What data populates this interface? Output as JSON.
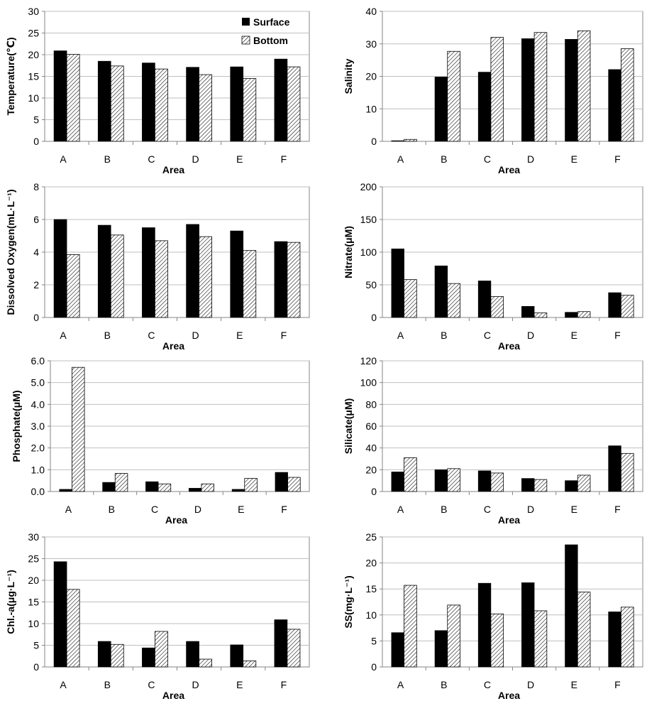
{
  "legend": {
    "surface_label": "Surface",
    "bottom_label": "Bottom"
  },
  "colors": {
    "surface": "#000000",
    "bottom_fill": "#ffffff",
    "bottom_hatch": "#000000",
    "grid": "#bfbfbf",
    "axis": "#868686"
  },
  "chart_data": [
    {
      "type": "bar",
      "title": "",
      "xlabel": "Area",
      "ylabel": "Temperature(℃)",
      "categories": [
        "A",
        "B",
        "C",
        "D",
        "E",
        "F"
      ],
      "ylim": [
        0,
        30
      ],
      "yticks": [
        "0",
        "5",
        "10",
        "15",
        "20",
        "25",
        "30"
      ],
      "grid": true,
      "legend": "top-right",
      "series": [
        {
          "name": "Surface",
          "values": [
            20.9,
            18.5,
            18.1,
            17.1,
            17.2,
            19.0
          ]
        },
        {
          "name": "Bottom",
          "values": [
            20.1,
            17.4,
            16.7,
            15.4,
            14.5,
            17.2
          ]
        }
      ]
    },
    {
      "type": "bar",
      "title": "",
      "xlabel": "Area",
      "ylabel": "Salinity",
      "categories": [
        "A",
        "B",
        "C",
        "D",
        "E",
        "F"
      ],
      "ylim": [
        0,
        40
      ],
      "yticks": [
        "0",
        "10",
        "20",
        "30",
        "40"
      ],
      "grid": true,
      "series": [
        {
          "name": "Surface",
          "values": [
            0.2,
            19.8,
            21.3,
            31.6,
            31.4,
            22.1
          ]
        },
        {
          "name": "Bottom",
          "values": [
            0.6,
            27.7,
            32.0,
            33.5,
            34.0,
            28.5
          ]
        }
      ]
    },
    {
      "type": "bar",
      "title": "",
      "xlabel": "Area",
      "ylabel": "Dissolved Oxygen(mL·L⁻¹)",
      "categories": [
        "A",
        "B",
        "C",
        "D",
        "E",
        "F"
      ],
      "ylim": [
        0,
        8
      ],
      "yticks": [
        "0",
        "2",
        "4",
        "6",
        "8"
      ],
      "grid": true,
      "series": [
        {
          "name": "Surface",
          "values": [
            6.0,
            5.65,
            5.5,
            5.7,
            5.3,
            4.65
          ]
        },
        {
          "name": "Bottom",
          "values": [
            3.85,
            5.05,
            4.7,
            4.95,
            4.1,
            4.6
          ]
        }
      ]
    },
    {
      "type": "bar",
      "title": "",
      "xlabel": "Area",
      "ylabel": "Nitrate(μM)",
      "categories": [
        "A",
        "B",
        "C",
        "D",
        "E",
        "F"
      ],
      "ylim": [
        0,
        200
      ],
      "yticks": [
        "0",
        "50",
        "100",
        "150",
        "200"
      ],
      "grid": true,
      "series": [
        {
          "name": "Surface",
          "values": [
            105,
            79,
            56,
            17,
            8,
            38
          ]
        },
        {
          "name": "Bottom",
          "values": [
            58,
            52,
            32,
            7,
            9,
            34
          ]
        }
      ]
    },
    {
      "type": "bar",
      "title": "",
      "xlabel": "Area",
      "ylabel": "Phosphate(μM)",
      "categories": [
        "A",
        "B",
        "C",
        "D",
        "E",
        "F"
      ],
      "ylim": [
        0,
        6
      ],
      "yticks": [
        "0.0",
        "1.0",
        "2.0",
        "3.0",
        "4.0",
        "5.0",
        "6.0"
      ],
      "grid": true,
      "series": [
        {
          "name": "Surface",
          "values": [
            0.1,
            0.42,
            0.45,
            0.15,
            0.1,
            0.88
          ]
        },
        {
          "name": "Bottom",
          "values": [
            5.7,
            0.83,
            0.35,
            0.35,
            0.6,
            0.65
          ]
        }
      ]
    },
    {
      "type": "bar",
      "title": "",
      "xlabel": "Area",
      "ylabel": "Silicate(μM)",
      "categories": [
        "A",
        "B",
        "C",
        "D",
        "E",
        "F"
      ],
      "ylim": [
        0,
        120
      ],
      "yticks": [
        "0",
        "20",
        "40",
        "60",
        "80",
        "100",
        "120"
      ],
      "grid": true,
      "series": [
        {
          "name": "Surface",
          "values": [
            18,
            20,
            19,
            12,
            10,
            42
          ]
        },
        {
          "name": "Bottom",
          "values": [
            31,
            21,
            17,
            11,
            15,
            35
          ]
        }
      ]
    },
    {
      "type": "bar",
      "title": "",
      "xlabel": "Area",
      "ylabel": "Chl.-a(μg·L⁻¹)",
      "categories": [
        "A",
        "B",
        "C",
        "D",
        "E",
        "F"
      ],
      "ylim": [
        0,
        30
      ],
      "yticks": [
        "0",
        "5",
        "10",
        "15",
        "20",
        "25",
        "30"
      ],
      "grid": true,
      "series": [
        {
          "name": "Surface",
          "values": [
            24.3,
            5.9,
            4.4,
            5.9,
            5.1,
            10.9
          ]
        },
        {
          "name": "Bottom",
          "values": [
            17.9,
            5.2,
            8.2,
            1.8,
            1.4,
            8.7
          ]
        }
      ]
    },
    {
      "type": "bar",
      "title": "",
      "xlabel": "Area",
      "ylabel": "SS(mg·L⁻¹)",
      "categories": [
        "A",
        "B",
        "C",
        "D",
        "E",
        "F"
      ],
      "ylim": [
        0,
        25
      ],
      "yticks": [
        "0",
        "5",
        "10",
        "15",
        "20",
        "25"
      ],
      "grid": true,
      "series": [
        {
          "name": "Surface",
          "values": [
            6.6,
            7.0,
            16.1,
            16.2,
            23.5,
            10.6
          ]
        },
        {
          "name": "Bottom",
          "values": [
            15.7,
            11.9,
            10.2,
            10.8,
            14.4,
            11.5
          ]
        }
      ]
    }
  ]
}
